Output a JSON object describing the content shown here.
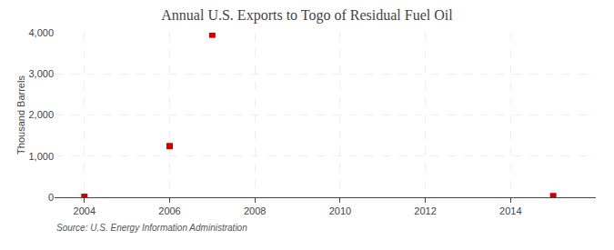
{
  "chart_data": {
    "type": "scatter",
    "title": "Annual U.S. Exports to Togo of Residual Fuel Oil",
    "ylabel": "Thousand Barrels",
    "annotations": [
      "Source: U.S. Energy Information Administration"
    ],
    "x": [
      2004,
      2006,
      2007,
      2015
    ],
    "values": [
      10,
      1243,
      3952,
      28
    ],
    "color": "#cc0000",
    "marker": "square",
    "xlim": [
      2003.3,
      2016.0
    ],
    "xticks": [
      2004,
      2006,
      2008,
      2010,
      2012,
      2014
    ],
    "ylim": [
      0,
      4000
    ],
    "yticks": [
      0,
      {
        "value": 1000,
        "label": "1,000"
      },
      {
        "value": 2000,
        "label": "2,000"
      },
      {
        "value": 3000,
        "label": "3,000"
      },
      {
        "value": 4000,
        "label": "4,000"
      }
    ],
    "grid": true
  }
}
